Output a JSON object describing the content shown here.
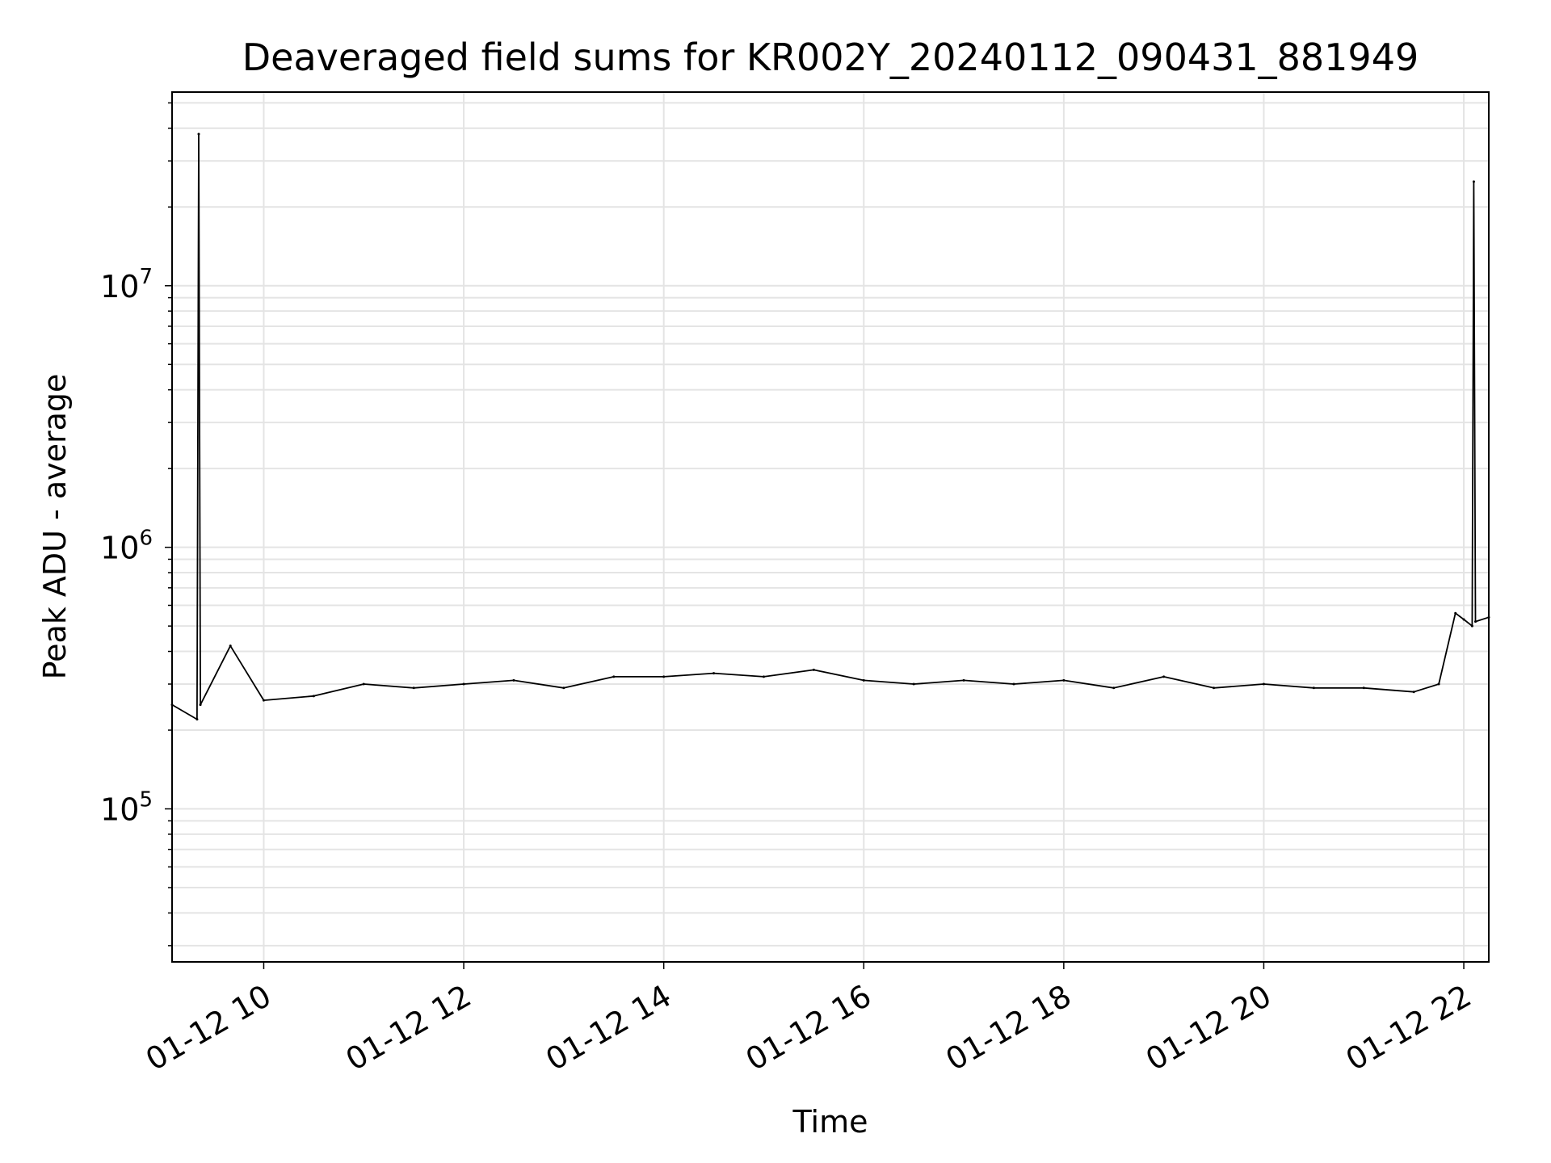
{
  "chart_data": {
    "type": "line",
    "title": "Deaveraged field sums for KR002Y_20240112_090431_881949",
    "xlabel": "Time",
    "ylabel": "Peak ADU - average",
    "x_scale": "time",
    "y_scale": "log",
    "xlim": [
      "2024-01-12T09:05",
      "2024-01-12T22:15"
    ],
    "ylim": [
      26000,
      55000000
    ],
    "xticks": [
      {
        "t": "2024-01-12T10:00",
        "label": "01-12 10"
      },
      {
        "t": "2024-01-12T12:00",
        "label": "01-12 12"
      },
      {
        "t": "2024-01-12T14:00",
        "label": "01-12 14"
      },
      {
        "t": "2024-01-12T16:00",
        "label": "01-12 16"
      },
      {
        "t": "2024-01-12T18:00",
        "label": "01-12 18"
      },
      {
        "t": "2024-01-12T20:00",
        "label": "01-12 20"
      },
      {
        "t": "2024-01-12T22:00",
        "label": "01-12 22"
      }
    ],
    "yticks": [
      {
        "value": 100000,
        "base": "10",
        "exp": "5"
      },
      {
        "value": 1000000,
        "base": "10",
        "exp": "6"
      },
      {
        "value": 10000000,
        "base": "10",
        "exp": "7"
      }
    ],
    "grid": true,
    "legend": "none",
    "line_color": "#000000",
    "series": [
      {
        "x": [
          "2024-01-12T09:05",
          "2024-01-12T09:20",
          "2024-01-12T09:21",
          "2024-01-12T09:22",
          "2024-01-12T09:40",
          "2024-01-12T10:00",
          "2024-01-12T10:30",
          "2024-01-12T11:00",
          "2024-01-12T11:30",
          "2024-01-12T12:00",
          "2024-01-12T12:30",
          "2024-01-12T13:00",
          "2024-01-12T13:30",
          "2024-01-12T14:00",
          "2024-01-12T14:30",
          "2024-01-12T15:00",
          "2024-01-12T15:30",
          "2024-01-12T16:00",
          "2024-01-12T16:30",
          "2024-01-12T17:00",
          "2024-01-12T17:30",
          "2024-01-12T18:00",
          "2024-01-12T18:30",
          "2024-01-12T19:00",
          "2024-01-12T19:30",
          "2024-01-12T20:00",
          "2024-01-12T20:30",
          "2024-01-12T21:00",
          "2024-01-12T21:30",
          "2024-01-12T21:45",
          "2024-01-12T21:55",
          "2024-01-12T22:00",
          "2024-01-12T22:05",
          "2024-01-12T22:06",
          "2024-01-12T22:07",
          "2024-01-12T22:15"
        ],
        "values": [
          250000,
          220000,
          38000000,
          250000,
          420000,
          260000,
          270000,
          300000,
          290000,
          300000,
          310000,
          290000,
          320000,
          320000,
          330000,
          320000,
          340000,
          310000,
          300000,
          310000,
          300000,
          310000,
          290000,
          320000,
          290000,
          300000,
          290000,
          290000,
          280000,
          300000,
          560000,
          530000,
          500000,
          25000000,
          520000,
          540000
        ]
      }
    ]
  }
}
